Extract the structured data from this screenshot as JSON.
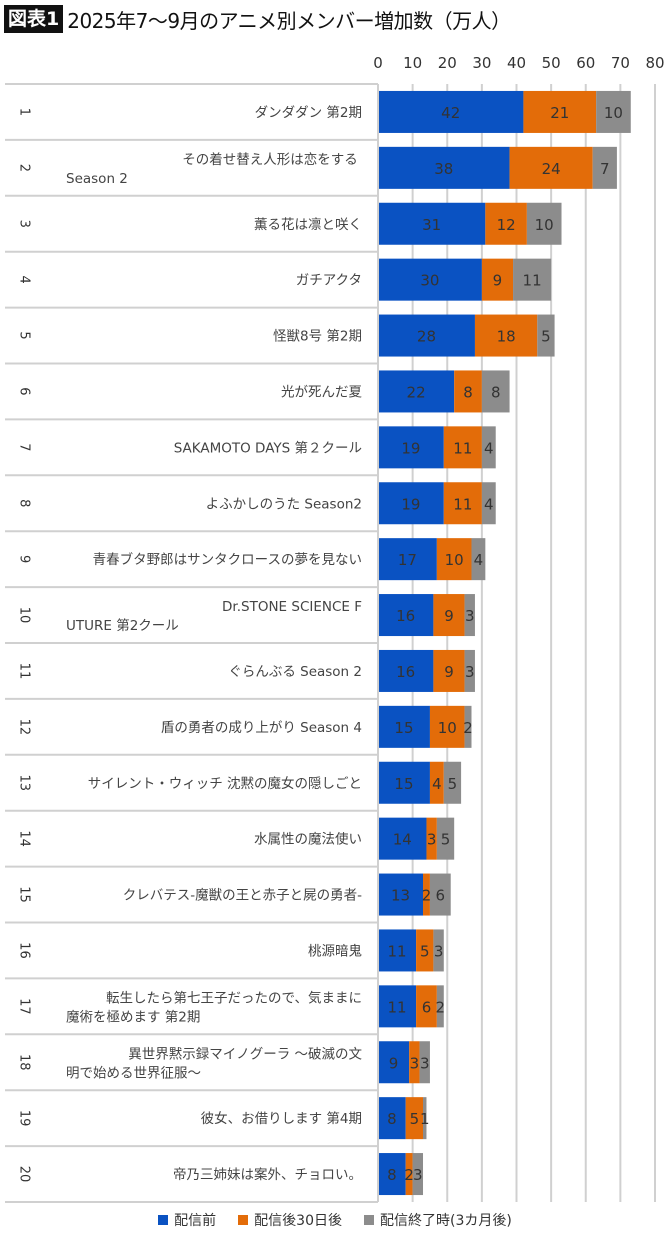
{
  "title": {
    "badge": "図表1",
    "text": "2025年7〜9月のアニメ別メンバー増加数（万人）"
  },
  "chart_data": {
    "type": "bar",
    "orientation": "horizontal",
    "stacked": true,
    "title": "2025年7〜9月のアニメ別メンバー増加数（万人）",
    "xlim": [
      0,
      80
    ],
    "xticks": [
      0,
      10,
      20,
      30,
      40,
      50,
      60,
      70,
      80
    ],
    "grid": true,
    "legend_position": "bottom",
    "ranks": [
      "1",
      "2",
      "3",
      "4",
      "5",
      "6",
      "7",
      "8",
      "9",
      "10",
      "11",
      "12",
      "13",
      "14",
      "15",
      "16",
      "17",
      "18",
      "19",
      "20"
    ],
    "categories": [
      "ダンダダン 第2期",
      "その着せ替え人形は恋をする Season 2",
      "薫る花は凛と咲く",
      "ガチアクタ",
      "怪獣8号 第2期",
      "光が死んだ夏",
      "SAKAMOTO DAYS 第２クール",
      "よふかしのうた Season2",
      "青春ブタ野郎はサンタクロースの夢を見ない",
      "Dr.STONE SCIENCE FUTURE 第2クール",
      "ぐらんぶる Season 2",
      "盾の勇者の成り上がり Season 4",
      "サイレント・ウィッチ 沈黙の魔女の隠しごと",
      "水属性の魔法使い",
      "クレバテス-魔獣の王と赤子と屍の勇者-",
      "桃源暗鬼",
      "転生したら第七王子だったので、気ままに魔術を極めます 第2期",
      "異世界黙示録マイノグーラ 〜破滅の文明で始める世界征服〜",
      "彼女、お借りします 第4期",
      "帝乃三姉妹は案外、チョロい。"
    ],
    "series": [
      {
        "name": "配信前",
        "color": "#0a52c2",
        "values": [
          42,
          38,
          31,
          30,
          28,
          22,
          19,
          19,
          17,
          16,
          16,
          15,
          15,
          14,
          13,
          11,
          11,
          9,
          8,
          8
        ]
      },
      {
        "name": "配信後30日後",
        "color": "#e36c09",
        "values": [
          21,
          24,
          12,
          9,
          18,
          8,
          11,
          11,
          10,
          9,
          9,
          10,
          4,
          3,
          2,
          5,
          6,
          3,
          5,
          2
        ]
      },
      {
        "name": "配信終了時(3カ月後)",
        "color": "#8c8c8c",
        "values": [
          10,
          7,
          10,
          11,
          5,
          8,
          4,
          4,
          4,
          3,
          3,
          2,
          5,
          5,
          6,
          3,
          2,
          3,
          1,
          3
        ]
      }
    ]
  }
}
